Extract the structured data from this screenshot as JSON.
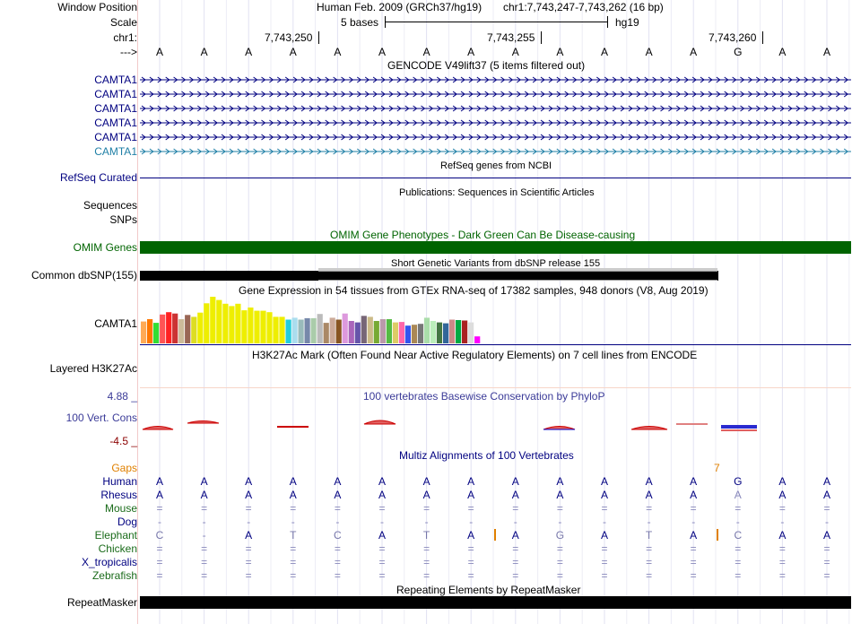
{
  "header": {
    "window_position_label": "Window Position",
    "scale_label": "Scale",
    "chrom_label": "chr1:",
    "arrow_label": "--->",
    "assembly": "Human Feb. 2009 (GRCh37/hg19)",
    "position": "chr1:7,743,247-7,743,262 (16 bp)",
    "scale_text": "5 bases",
    "scale_db": "hg19",
    "coords": [
      "7,743,250",
      "7,743,255",
      "7,743,260"
    ]
  },
  "bases": [
    "A",
    "A",
    "A",
    "A",
    "A",
    "A",
    "A",
    "A",
    "A",
    "A",
    "A",
    "A",
    "A",
    "G",
    "A",
    "A"
  ],
  "gencode": {
    "title": "GENCODE V49lift37 (5 items filtered out)",
    "items": [
      "CAMTA1",
      "CAMTA1",
      "CAMTA1",
      "CAMTA1",
      "CAMTA1",
      "CAMTA1"
    ]
  },
  "refseq": {
    "label": "RefSeq Curated",
    "title": "RefSeq genes from NCBI"
  },
  "publications": {
    "title": "Publications: Sequences in Scientific Articles",
    "sequences_label": "Sequences",
    "snps_label": "SNPs"
  },
  "omim": {
    "label": "OMIM Genes",
    "title": "OMIM Gene Phenotypes - Dark Green Can Be Disease-causing"
  },
  "dbsnp": {
    "label": "Common dbSNP(155)",
    "title": "Short Genetic Variants from dbSNP release 155"
  },
  "gtex": {
    "title": "Gene Expression in 54 tissues from GTEx RNA-seq of 17382 samples, 948 donors (V8, Aug 2019)",
    "gene": "CAMTA1",
    "values": [
      0.47,
      0.52,
      0.44,
      0.62,
      0.67,
      0.64,
      0.52,
      0.61,
      0.57,
      0.66,
      0.86,
      1.0,
      0.93,
      0.85,
      0.8,
      0.85,
      0.71,
      0.77,
      0.7,
      0.7,
      0.67,
      0.57,
      0.57,
      0.51,
      0.55,
      0.51,
      0.54,
      0.54,
      0.63,
      0.44,
      0.55,
      0.51,
      0.64,
      0.48,
      0.45,
      0.59,
      0.57,
      0.48,
      0.52,
      0.52,
      0.45,
      0.46,
      0.38,
      0.4,
      0.42,
      0.55,
      0.48,
      0.45,
      0.43,
      0.51,
      0.5,
      0.49,
      0.45,
      0.15
    ],
    "colors": [
      "#FFAA55",
      "#FF7700",
      "#33DD33",
      "#FF5555",
      "#FF2222",
      "#CC3333",
      "#CCBB99",
      "#996655",
      "#DDDD22",
      "#EEEE00",
      "#EEEE00",
      "#EEEE00",
      "#EEEE00",
      "#EEEE00",
      "#EEEE00",
      "#EEEE00",
      "#EEEE00",
      "#EEEE00",
      "#EEEE00",
      "#EEEE00",
      "#EEEE00",
      "#EEEE00",
      "#EEEE00",
      "#22CCDD",
      "#AADDEE",
      "#99BBBB",
      "#7788AA",
      "#AACCAA",
      "#BBBBBB",
      "#AA8866",
      "#CCAA99",
      "#885522",
      "#DD99DD",
      "#AA66BB",
      "#6655AA",
      "#776677",
      "#CCBB88",
      "#77AA33",
      "#BB99AA",
      "#55BB44",
      "#DDCC66",
      "#FF66AA",
      "#3355EE",
      "#AA8855",
      "#777777",
      "#AADDAA",
      "#BBEEBB",
      "#447744",
      "#336699",
      "#CC8888",
      "#00AA44",
      "#AA2222",
      "#DDDDDD",
      "#FF00FF"
    ]
  },
  "h3k27ac": {
    "label": "Layered H3K27Ac",
    "title": "H3K27Ac Mark (Often Found Near Active Regulatory Elements) on 7 cell lines from ENCODE"
  },
  "phylop": {
    "label": "100 Vert. Cons",
    "title": "100 vertebrates Basewise Conservation by PhyloP",
    "max": "4.88 _",
    "min": "-4.5 _"
  },
  "multiz": {
    "title": "Multiz Alignments of 100 Vertebrates",
    "gaps_label": "Gaps",
    "gap_marker": "7",
    "species": [
      {
        "name": "Human",
        "bases": [
          "A",
          "A",
          "A",
          "A",
          "A",
          "A",
          "A",
          "A",
          "A",
          "A",
          "A",
          "A",
          "A",
          "G",
          "A",
          "A"
        ]
      },
      {
        "name": "Rhesus",
        "bases": [
          "A",
          "A",
          "A",
          "A",
          "A",
          "A",
          "A",
          "A",
          "A",
          "A",
          "A",
          "A",
          "A",
          "A",
          "A",
          "A"
        ]
      },
      {
        "name": "Mouse",
        "bases": [
          "=",
          "=",
          "=",
          "=",
          "=",
          "=",
          "=",
          "=",
          "=",
          "=",
          "=",
          "=",
          "=",
          "=",
          "=",
          "="
        ]
      },
      {
        "name": "Dog",
        "bases": [
          "-",
          "-",
          "-",
          "-",
          "-",
          "-",
          "-",
          "-",
          "-",
          "-",
          "-",
          "-",
          "-",
          "-",
          "-",
          "-"
        ]
      },
      {
        "name": "Elephant",
        "bases": [
          "C",
          "-",
          "A",
          "T",
          "C",
          "A",
          "T",
          "A",
          "A",
          "G",
          "A",
          "T",
          "A",
          "C",
          "A",
          "A"
        ]
      },
      {
        "name": "Chicken",
        "bases": [
          "=",
          "=",
          "=",
          "=",
          "=",
          "=",
          "=",
          "=",
          "=",
          "=",
          "=",
          "=",
          "=",
          "=",
          "=",
          "="
        ]
      },
      {
        "name": "X_tropicalis",
        "bases": [
          "=",
          "=",
          "=",
          "=",
          "=",
          "=",
          "=",
          "=",
          "=",
          "=",
          "=",
          "=",
          "=",
          "=",
          "=",
          "="
        ]
      },
      {
        "name": "Zebrafish",
        "bases": [
          "=",
          "=",
          "=",
          "=",
          "=",
          "=",
          "=",
          "=",
          "=",
          "=",
          "=",
          "=",
          "=",
          "=",
          "=",
          "="
        ]
      }
    ]
  },
  "repeatmasker": {
    "label": "RepeatMasker",
    "title": "Repeating Elements by RepeatMasker"
  },
  "colors": {
    "navy": "#000080",
    "omim_green": "#006400",
    "label_green": "#1a6b1a",
    "gaps_orange": "#e08000",
    "phylop_blue": "#3b3b98",
    "phylop_red": "#8b0000"
  }
}
